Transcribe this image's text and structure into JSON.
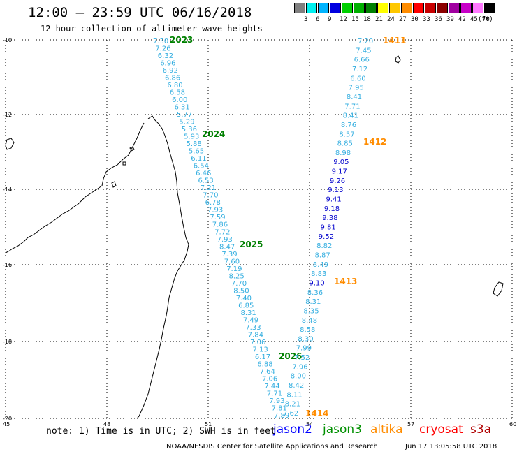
{
  "header": {
    "title": "12:00 – 23:59 UTC 06/16/2018",
    "subtitle": "12 hour collection of altimeter wave heights"
  },
  "legend": {
    "unit": "(ft)",
    "bins": [
      {
        "label": "3",
        "color": "#808080"
      },
      {
        "label": "6",
        "color": "#00f0f0"
      },
      {
        "label": "9",
        "color": "#00b4ff"
      },
      {
        "label": "12",
        "color": "#0000e0"
      },
      {
        "label": "15",
        "color": "#00d000"
      },
      {
        "label": "18",
        "color": "#00b000"
      },
      {
        "label": "21",
        "color": "#008000"
      },
      {
        "label": "24",
        "color": "#ffff00"
      },
      {
        "label": "27",
        "color": "#ffc800"
      },
      {
        "label": "30",
        "color": "#ff8c00"
      },
      {
        "label": "33",
        "color": "#ff0000"
      },
      {
        "label": "36",
        "color": "#c80000"
      },
      {
        "label": "39",
        "color": "#8b0000"
      },
      {
        "label": "42",
        "color": "#a000a0"
      },
      {
        "label": "45",
        "color": "#c800c8"
      },
      {
        "label": "70",
        "color": "#ff78ff"
      },
      {
        "label": "",
        "color": "#000000"
      }
    ]
  },
  "axes": {
    "lon_ticks": [
      "45",
      "48",
      "51",
      "54",
      "57",
      "60"
    ],
    "lat_ticks": [
      "-10",
      "-12",
      "-14",
      "-16",
      "-18",
      "-20"
    ]
  },
  "passes": [
    {
      "label": "2023",
      "color": "#008000"
    },
    {
      "label": "2024",
      "color": "#008000"
    },
    {
      "label": "2025",
      "color": "#008000"
    },
    {
      "label": "2026",
      "color": "#008000"
    },
    {
      "label": "1411",
      "color": "#ff8c00"
    },
    {
      "label": "1412",
      "color": "#ff8c00"
    },
    {
      "label": "1413",
      "color": "#ff8c00"
    },
    {
      "label": "1414",
      "color": "#ff8c00"
    }
  ],
  "track_west": {
    "color": "#33aee0",
    "values": [
      "7.30",
      "7.26",
      "6.32",
      "6.96",
      "6.92",
      "6.86",
      "6.80",
      "6.58",
      "6.00",
      "6.31",
      "5.77",
      "5.29",
      "5.36",
      "5.93",
      "5.88",
      "5.65",
      "6.11",
      "6.54",
      "6.46",
      "6.53",
      "7.21",
      "7.70",
      "6.78",
      "7.93",
      "7.59",
      "7.86",
      "7.72",
      "7.93",
      "8.47",
      "7.39",
      "7.60",
      "7.19",
      "8.25",
      "7.70",
      "8.50",
      "7.40",
      "6.85",
      "8.31",
      "7.49",
      "7.33",
      "7.84",
      "7.06",
      "7.13",
      "6.17",
      "6.88",
      "7.64",
      "7.06",
      "7.44",
      "7.71",
      "7.93",
      "7.81",
      "7.89"
    ]
  },
  "track_east": {
    "values": [
      {
        "v": "7.20",
        "c": "#33aee0"
      },
      {
        "v": "7.45",
        "c": "#33aee0"
      },
      {
        "v": "6.66",
        "c": "#33aee0"
      },
      {
        "v": "7.12",
        "c": "#33aee0"
      },
      {
        "v": "6.60",
        "c": "#33aee0"
      },
      {
        "v": "7.95",
        "c": "#33aee0"
      },
      {
        "v": "8.41",
        "c": "#33aee0"
      },
      {
        "v": "7.71",
        "c": "#33aee0"
      },
      {
        "v": "8.41",
        "c": "#33aee0"
      },
      {
        "v": "8.76",
        "c": "#33aee0"
      },
      {
        "v": "8.57",
        "c": "#33aee0"
      },
      {
        "v": "8.85",
        "c": "#33aee0"
      },
      {
        "v": "8.98",
        "c": "#33aee0"
      },
      {
        "v": "9.05",
        "c": "#0000cc"
      },
      {
        "v": "9.17",
        "c": "#0000cc"
      },
      {
        "v": "9.26",
        "c": "#0000cc"
      },
      {
        "v": "9.13",
        "c": "#0000cc"
      },
      {
        "v": "9.41",
        "c": "#0000cc"
      },
      {
        "v": "9.18",
        "c": "#0000cc"
      },
      {
        "v": "9.38",
        "c": "#0000cc"
      },
      {
        "v": "9.81",
        "c": "#0000cc"
      },
      {
        "v": "9.52",
        "c": "#0000cc"
      },
      {
        "v": "8.82",
        "c": "#33aee0"
      },
      {
        "v": "8.87",
        "c": "#33aee0"
      },
      {
        "v": "8.49",
        "c": "#33aee0"
      },
      {
        "v": "8.83",
        "c": "#33aee0"
      },
      {
        "v": "9.10",
        "c": "#0000cc"
      },
      {
        "v": "8.36",
        "c": "#33aee0"
      },
      {
        "v": "8.31",
        "c": "#33aee0"
      },
      {
        "v": "8.35",
        "c": "#33aee0"
      },
      {
        "v": "8.48",
        "c": "#33aee0"
      },
      {
        "v": "8.58",
        "c": "#33aee0"
      },
      {
        "v": "8.30",
        "c": "#33aee0"
      },
      {
        "v": "7.99",
        "c": "#33aee0"
      },
      {
        "v": "7.52",
        "c": "#33aee0"
      },
      {
        "v": "7.96",
        "c": "#33aee0"
      },
      {
        "v": "8.00",
        "c": "#33aee0"
      },
      {
        "v": "8.42",
        "c": "#33aee0"
      },
      {
        "v": "8.11",
        "c": "#33aee0"
      },
      {
        "v": "8.21",
        "c": "#33aee0"
      },
      {
        "v": "7.62",
        "c": "#33aee0"
      }
    ]
  },
  "footer": {
    "note": "note:  1) Time is in UTC; 2) SWH is in feet",
    "satellites": [
      {
        "label": "jason2",
        "color": "#0000ff"
      },
      {
        "label": "jason3",
        "color": "#009000"
      },
      {
        "label": "altika",
        "color": "#ff8c00"
      },
      {
        "label": "cryosat",
        "color": "#ff0000"
      },
      {
        "label": "s3a",
        "color": "#b00000"
      }
    ],
    "credit": "NOAA/NESDIS Center for Satellite Applications and Research",
    "timestamp": "Jun 17 13:05:58 UTC 2018"
  }
}
